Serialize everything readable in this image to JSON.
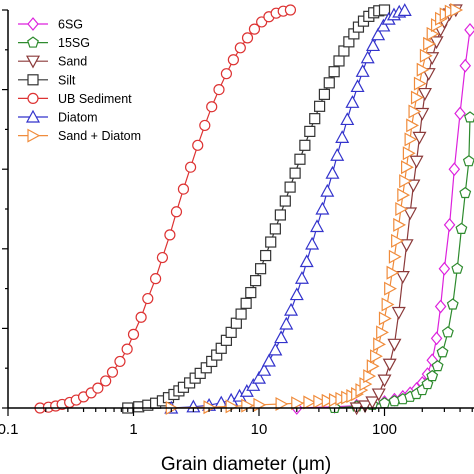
{
  "chart_data": {
    "type": "line",
    "xlabel": "Grain diameter (μm)",
    "ylabel": "",
    "x_scale": "log",
    "xlim": [
      0.1,
      480
    ],
    "ylim": [
      0,
      100
    ],
    "x_ticks": [
      "0.1",
      "1",
      "10",
      "100"
    ],
    "grid": false,
    "legend_position": "top-left",
    "series": [
      {
        "name": "6SG",
        "color": "#dd22dd",
        "marker": "diamond",
        "points": [
          [
            20,
            0
          ],
          [
            40,
            0.3
          ],
          [
            60,
            0.6
          ],
          [
            80,
            1
          ],
          [
            100,
            1.5
          ],
          [
            120,
            2.1
          ],
          [
            140,
            2.8
          ],
          [
            160,
            3.7
          ],
          [
            180,
            4.8
          ],
          [
            200,
            6.3
          ],
          [
            220,
            8.5
          ],
          [
            240,
            12
          ],
          [
            260,
            17.5
          ],
          [
            280,
            25.5
          ],
          [
            300,
            35
          ],
          [
            330,
            46
          ],
          [
            360,
            60
          ],
          [
            400,
            74
          ],
          [
            440,
            86
          ],
          [
            480,
            95
          ]
        ]
      },
      {
        "name": "15SG",
        "color": "#2e8b2e",
        "marker": "pentagon",
        "points": [
          [
            40,
            0
          ],
          [
            60,
            0.4
          ],
          [
            80,
            0.8
          ],
          [
            100,
            1.2
          ],
          [
            120,
            1.7
          ],
          [
            140,
            2.2
          ],
          [
            160,
            2.8
          ],
          [
            180,
            3.5
          ],
          [
            200,
            4.5
          ],
          [
            220,
            6
          ],
          [
            240,
            8
          ],
          [
            265,
            10.5
          ],
          [
            290,
            14
          ],
          [
            320,
            19
          ],
          [
            350,
            26
          ],
          [
            380,
            35
          ],
          [
            410,
            45
          ],
          [
            440,
            54
          ],
          [
            470,
            62
          ],
          [
            480,
            73
          ]
        ]
      },
      {
        "name": "Sand",
        "color": "#8b3a3a",
        "marker": "triangle-down",
        "points": [
          [
            60,
            0
          ],
          [
            70,
            0.5
          ],
          [
            80,
            1.5
          ],
          [
            90,
            3.5
          ],
          [
            100,
            7
          ],
          [
            110,
            11
          ],
          [
            120,
            16
          ],
          [
            130,
            24
          ],
          [
            140,
            33
          ],
          [
            150,
            41
          ],
          [
            160,
            49
          ],
          [
            170,
            56
          ],
          [
            180,
            62
          ],
          [
            190,
            68
          ],
          [
            200,
            74
          ],
          [
            210,
            79
          ],
          [
            225,
            84
          ],
          [
            240,
            88
          ],
          [
            260,
            92
          ],
          [
            280,
            95
          ],
          [
            300,
            97
          ],
          [
            330,
            99
          ],
          [
            370,
            100
          ]
        ]
      },
      {
        "name": "Silt",
        "color": "#333333",
        "marker": "square",
        "points": [
          [
            0.9,
            0
          ],
          [
            1.1,
            0.3
          ],
          [
            1.3,
            0.7
          ],
          [
            1.5,
            1.2
          ],
          [
            1.7,
            1.8
          ],
          [
            1.9,
            2.6
          ],
          [
            2.1,
            3.4
          ],
          [
            2.3,
            4.3
          ],
          [
            2.5,
            5.2
          ],
          [
            2.8,
            6.3
          ],
          [
            3.1,
            7.5
          ],
          [
            3.4,
            8.7
          ],
          [
            3.8,
            10.1
          ],
          [
            4.2,
            11.7
          ],
          [
            4.6,
            13.3
          ],
          [
            5.0,
            15
          ],
          [
            5.5,
            17
          ],
          [
            6.0,
            19
          ],
          [
            6.6,
            21.3
          ],
          [
            7.2,
            23.6
          ],
          [
            7.9,
            26.3
          ],
          [
            8.6,
            29
          ],
          [
            9.4,
            32
          ],
          [
            10.3,
            35
          ],
          [
            11.3,
            38.3
          ],
          [
            12.4,
            41.7
          ],
          [
            13.5,
            45
          ],
          [
            14.8,
            48.5
          ],
          [
            16.2,
            52
          ],
          [
            17.7,
            55.5
          ],
          [
            19.4,
            59
          ],
          [
            21.2,
            62.5
          ],
          [
            23.2,
            66
          ],
          [
            25.4,
            69.5
          ],
          [
            27.8,
            72.7
          ],
          [
            30.4,
            75.8
          ],
          [
            33.2,
            78.8
          ],
          [
            36.3,
            81.7
          ],
          [
            39.7,
            84.5
          ],
          [
            43.4,
            87.2
          ],
          [
            47.5,
            89.7
          ],
          [
            52,
            92
          ],
          [
            57,
            94
          ],
          [
            62,
            95.7
          ],
          [
            68,
            97.2
          ],
          [
            75,
            98.4
          ],
          [
            82,
            99.3
          ],
          [
            90,
            99.8
          ],
          [
            100,
            100
          ]
        ]
      },
      {
        "name": "UB Sediment",
        "color": "#dd3333",
        "marker": "circle",
        "points": [
          [
            0.18,
            0
          ],
          [
            0.21,
            0.2
          ],
          [
            0.24,
            0.5
          ],
          [
            0.27,
            0.9
          ],
          [
            0.31,
            1.4
          ],
          [
            0.35,
            2
          ],
          [
            0.4,
            2.8
          ],
          [
            0.46,
            3.8
          ],
          [
            0.52,
            5
          ],
          [
            0.6,
            6.8
          ],
          [
            0.68,
            9
          ],
          [
            0.78,
            11.7
          ],
          [
            0.89,
            14.8
          ],
          [
            1.0,
            18.5
          ],
          [
            1.15,
            22.8
          ],
          [
            1.3,
            27.5
          ],
          [
            1.5,
            32.5
          ],
          [
            1.7,
            37.8
          ],
          [
            1.95,
            43.5
          ],
          [
            2.2,
            49.3
          ],
          [
            2.5,
            55
          ],
          [
            2.85,
            60.5
          ],
          [
            3.25,
            66
          ],
          [
            3.7,
            71
          ],
          [
            4.2,
            75.7
          ],
          [
            4.8,
            80
          ],
          [
            5.5,
            84
          ],
          [
            6.25,
            87.5
          ],
          [
            7.1,
            90.5
          ],
          [
            8.1,
            93
          ],
          [
            9.2,
            95.2
          ],
          [
            10.5,
            97
          ],
          [
            12,
            98.3
          ],
          [
            13.7,
            99.2
          ],
          [
            15.6,
            99.7
          ],
          [
            17.8,
            100
          ]
        ]
      },
      {
        "name": "Diatom",
        "color": "#3333cc",
        "marker": "triangle-up",
        "points": [
          [
            2,
            0
          ],
          [
            3,
            0.3
          ],
          [
            4,
            0.7
          ],
          [
            5,
            1.3
          ],
          [
            6,
            2
          ],
          [
            7,
            3
          ],
          [
            8,
            4.2
          ],
          [
            9,
            5.7
          ],
          [
            10,
            7.5
          ],
          [
            11,
            9.5
          ],
          [
            12,
            11.8
          ],
          [
            13.5,
            14.6
          ],
          [
            15,
            17.7
          ],
          [
            16.5,
            21.1
          ],
          [
            18,
            24.6
          ],
          [
            20,
            28.5
          ],
          [
            22,
            32.6
          ],
          [
            24,
            36.8
          ],
          [
            26.5,
            41.2
          ],
          [
            29,
            45.6
          ],
          [
            32,
            50
          ],
          [
            35,
            54.5
          ],
          [
            38.5,
            59
          ],
          [
            42,
            63.5
          ],
          [
            46,
            68
          ],
          [
            50.5,
            72.5
          ],
          [
            55.5,
            76.8
          ],
          [
            61,
            80.8
          ],
          [
            67,
            84.6
          ],
          [
            73.5,
            88
          ],
          [
            81,
            91.1
          ],
          [
            89,
            93.8
          ],
          [
            98,
            96
          ],
          [
            108,
            97.7
          ],
          [
            119,
            98.8
          ],
          [
            131,
            99.5
          ],
          [
            145,
            99.9
          ]
        ]
      },
      {
        "name": "Sand + Diatom",
        "color": "#f08c3c",
        "marker": "triangle-right",
        "points": [
          [
            2,
            0
          ],
          [
            4,
            0.2
          ],
          [
            6,
            0.4
          ],
          [
            8,
            0.6
          ],
          [
            10,
            0.8
          ],
          [
            15,
            1
          ],
          [
            20,
            1.2
          ],
          [
            25,
            1.4
          ],
          [
            30,
            1.6
          ],
          [
            35,
            1.8
          ],
          [
            40,
            2
          ],
          [
            45,
            2.3
          ],
          [
            50,
            2.6
          ],
          [
            55,
            3.0
          ],
          [
            60,
            3.5
          ],
          [
            65,
            4.5
          ],
          [
            70,
            6
          ],
          [
            75,
            8
          ],
          [
            80,
            10.5
          ],
          [
            85,
            13
          ],
          [
            90,
            16
          ],
          [
            95,
            19
          ],
          [
            100,
            22.5
          ],
          [
            105,
            26
          ],
          [
            110,
            30
          ],
          [
            115,
            34
          ],
          [
            120,
            38
          ],
          [
            125,
            42
          ],
          [
            130,
            46
          ],
          [
            135,
            50
          ],
          [
            140,
            53.5
          ],
          [
            145,
            57
          ],
          [
            150,
            60.5
          ],
          [
            155,
            64
          ],
          [
            160,
            67.5
          ],
          [
            165,
            71
          ],
          [
            172,
            74.5
          ],
          [
            180,
            78
          ],
          [
            190,
            81.5
          ],
          [
            200,
            85
          ],
          [
            212,
            88.5
          ],
          [
            225,
            91.5
          ],
          [
            240,
            94
          ],
          [
            260,
            96.2
          ],
          [
            280,
            97.8
          ],
          [
            305,
            98.9
          ],
          [
            335,
            99.6
          ],
          [
            370,
            100
          ]
        ]
      }
    ]
  }
}
